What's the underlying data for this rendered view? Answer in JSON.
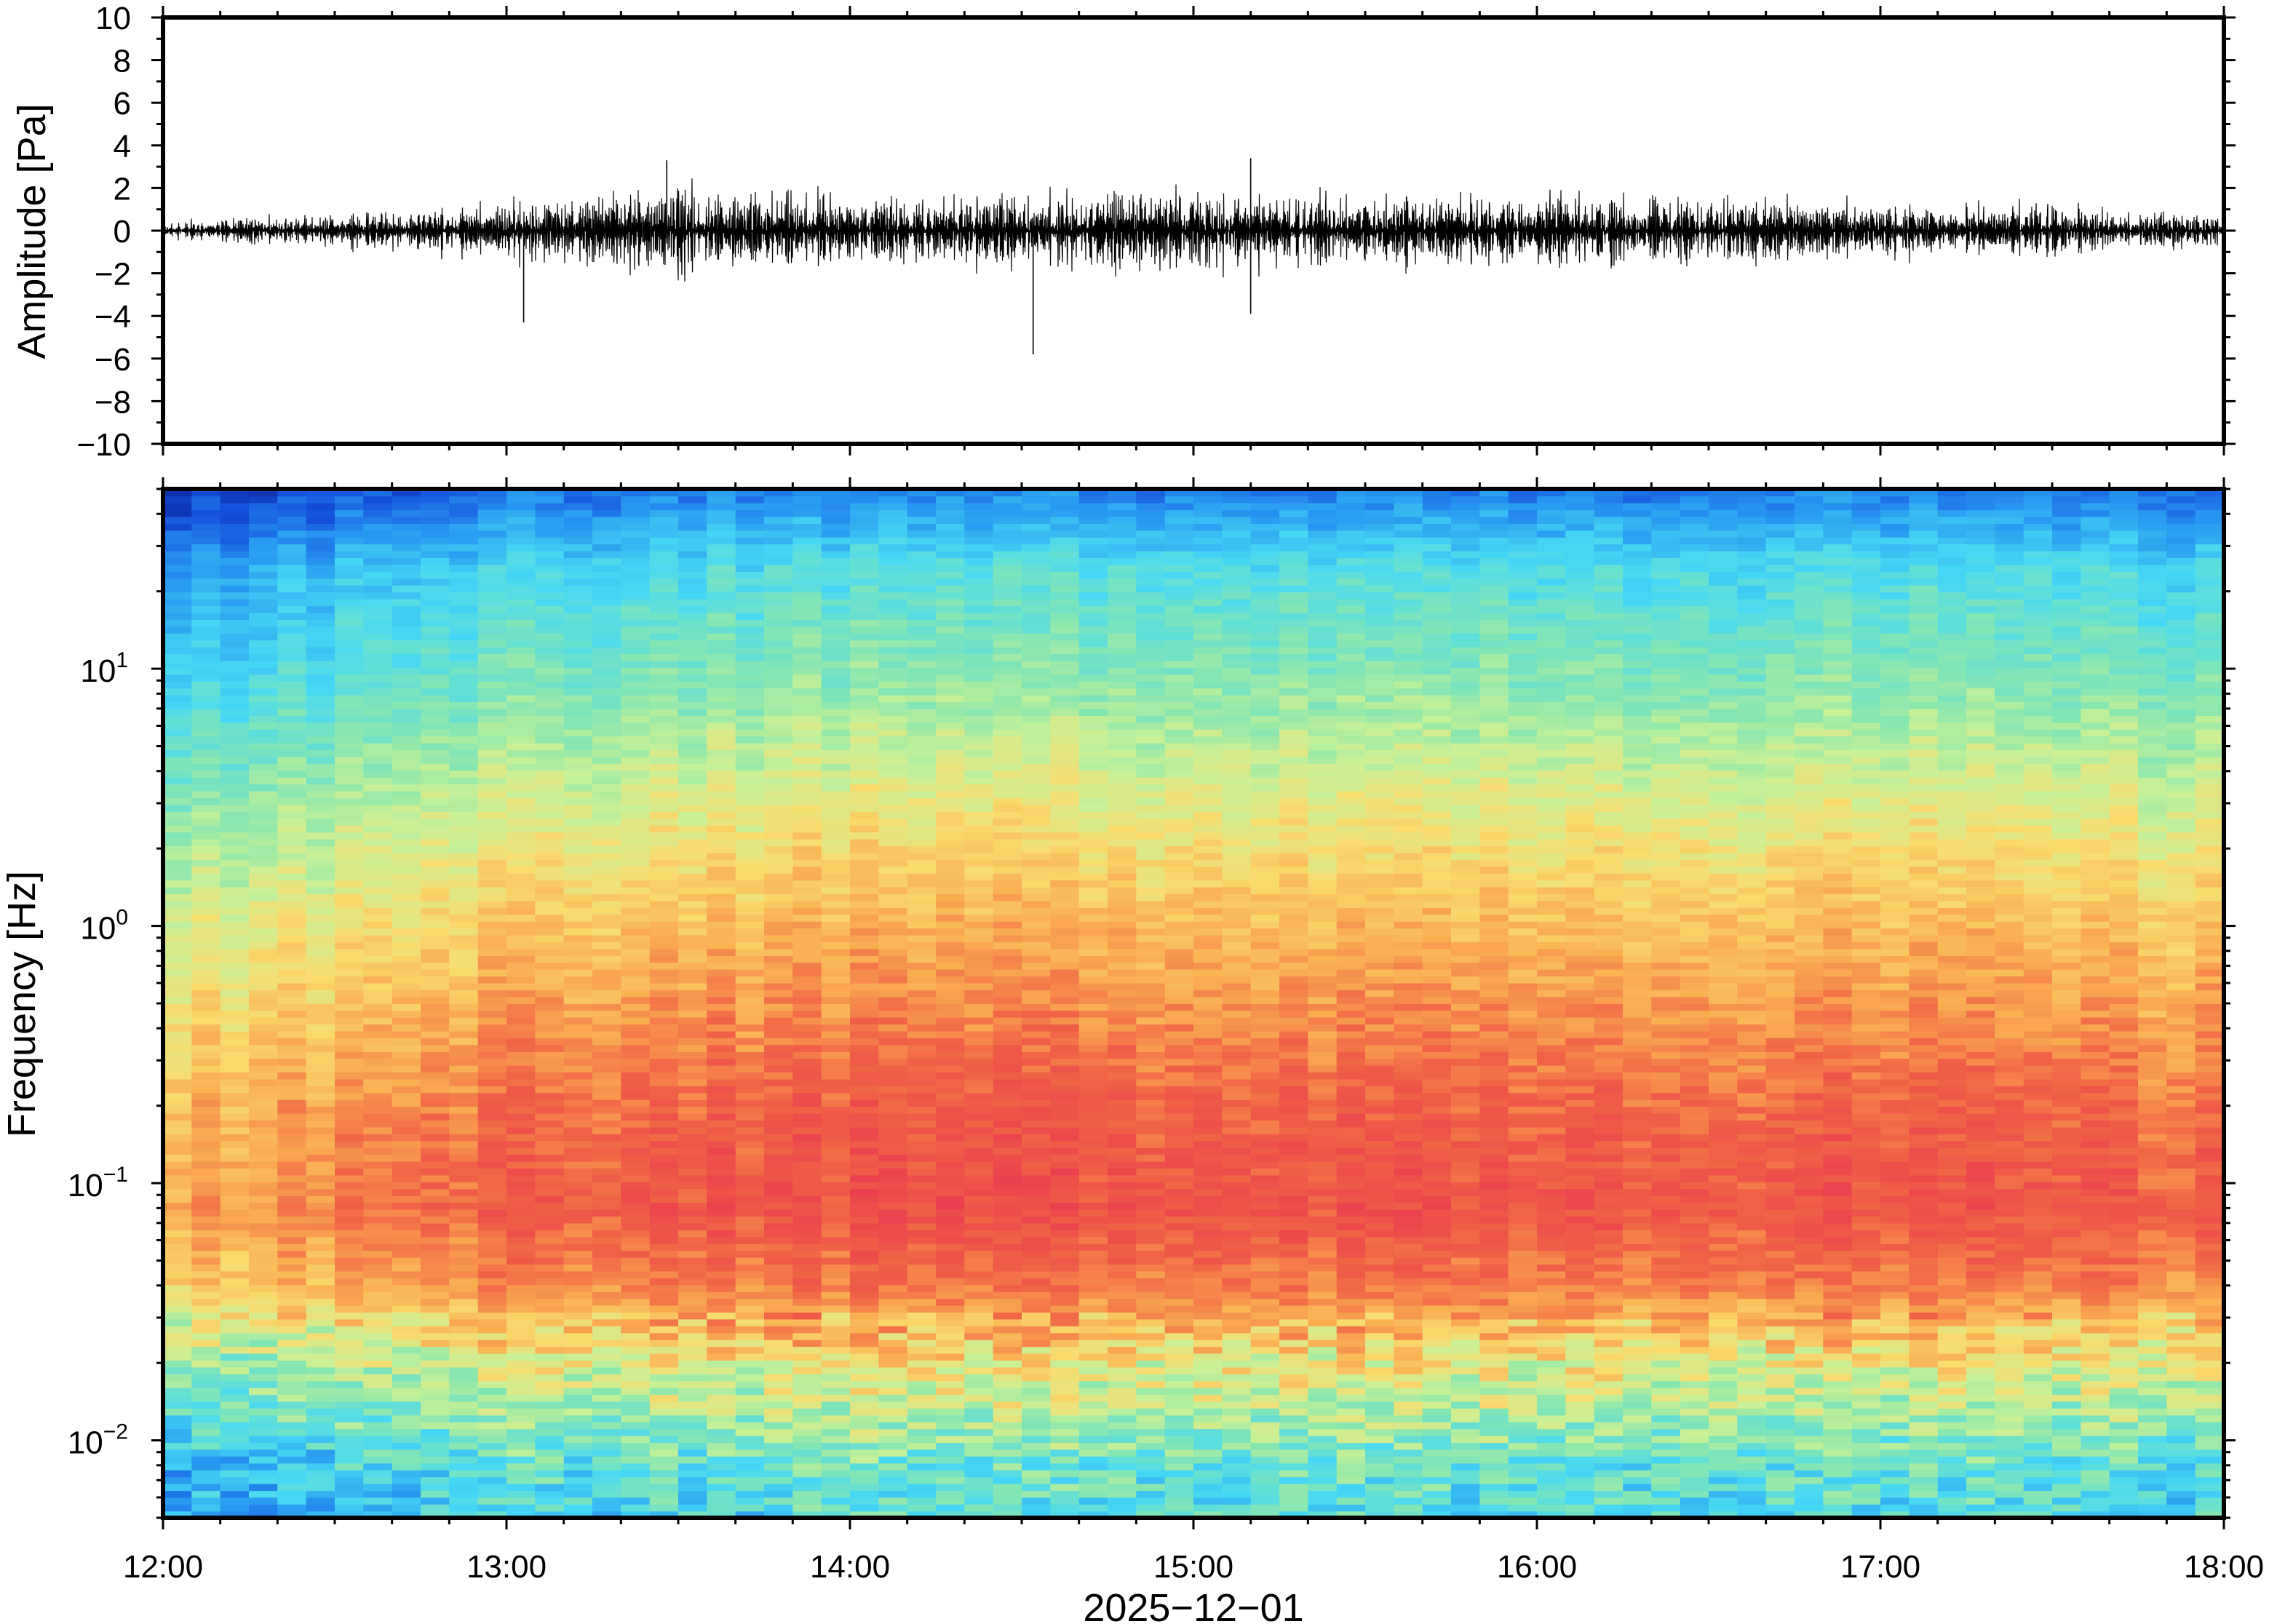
{
  "chart_data": [
    {
      "type": "line",
      "title": "",
      "xlabel": "",
      "ylabel": "Amplitude [Pa]",
      "x_range": [
        "12:00",
        "18:00"
      ],
      "ylim": [
        -10,
        10
      ],
      "y_ticks": [
        {
          "value": 10,
          "label": "10"
        },
        {
          "value": 8,
          "label": "8"
        },
        {
          "value": 6,
          "label": "6"
        },
        {
          "value": 4,
          "label": "4"
        },
        {
          "value": 2,
          "label": "2"
        },
        {
          "value": 0,
          "label": "0"
        },
        {
          "value": -2,
          "label": "−2"
        },
        {
          "value": -4,
          "label": "−4"
        },
        {
          "value": -6,
          "label": "−6"
        },
        {
          "value": -8,
          "label": "−8"
        },
        {
          "value": -10,
          "label": "−10"
        }
      ],
      "grid": false,
      "line_color": "#000000",
      "envelope": {
        "time": [
          "12:00",
          "12:30",
          "13:00",
          "13:30",
          "14:00",
          "14:30",
          "15:00",
          "15:30",
          "16:00",
          "16:30",
          "17:00",
          "17:30",
          "18:00"
        ],
        "typical_abs_amplitude": [
          0.3,
          0.4,
          0.8,
          1.2,
          1.0,
          1.0,
          1.1,
          1.0,
          1.0,
          0.9,
          0.8,
          0.7,
          0.4
        ]
      },
      "peaks": [
        {
          "time": "13:03",
          "value": -4.3
        },
        {
          "time": "13:28",
          "value": 3.3
        },
        {
          "time": "14:32",
          "value": -5.8
        },
        {
          "time": "15:10",
          "value": 3.4
        },
        {
          "time": "15:10",
          "value": -3.9
        }
      ]
    },
    {
      "type": "heatmap",
      "title": "",
      "xlabel": "2025−12−01",
      "ylabel": "Frequency [Hz]",
      "x_range": [
        "12:00",
        "18:00"
      ],
      "x_ticks": [
        "12:00",
        "13:00",
        "14:00",
        "15:00",
        "16:00",
        "17:00",
        "18:00"
      ],
      "y_scale": "log",
      "ylim": [
        0.005,
        50
      ],
      "y_ticks": [
        {
          "value": 10,
          "base": "10",
          "exp": "1"
        },
        {
          "value": 1,
          "base": "10",
          "exp": "0"
        },
        {
          "value": 0.1,
          "base": "10",
          "exp": "−1"
        },
        {
          "value": 0.01,
          "base": "10",
          "exp": "−2"
        }
      ],
      "colormap": "jet-like",
      "colorbar": false,
      "description_levels": {
        "freq_hz": [
          0.005,
          0.008,
          0.012,
          0.02,
          0.04,
          0.08,
          0.2,
          0.5,
          1,
          3,
          10,
          25,
          50
        ],
        "relative_power": [
          0.35,
          0.4,
          0.5,
          0.62,
          0.82,
          0.9,
          0.86,
          0.78,
          0.72,
          0.6,
          0.45,
          0.35,
          0.15
        ]
      }
    }
  ]
}
